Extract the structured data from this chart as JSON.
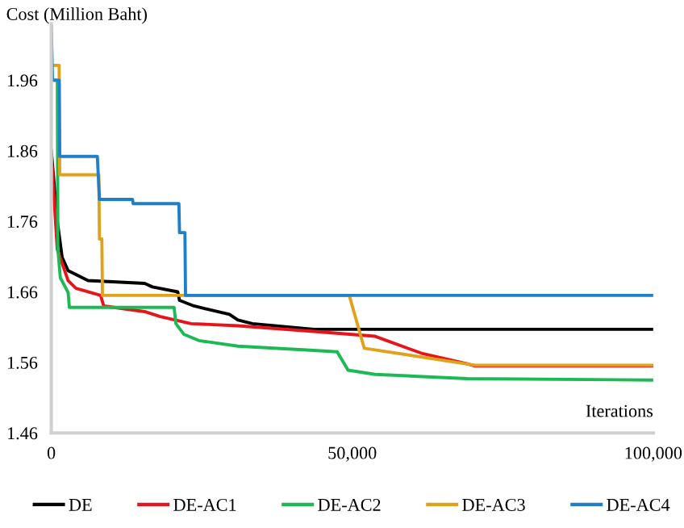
{
  "chart_data": {
    "type": "line",
    "xlabel": "Iterations",
    "ylabel": "Cost (Million Baht)",
    "xlim": [
      0,
      100000
    ],
    "ylim": [
      1.46,
      2.04
    ],
    "xticks": [
      0,
      {
        "value": 50000,
        "label": "50,000"
      },
      {
        "value": 100000,
        "label": "100,000"
      }
    ],
    "yticks": [
      1.46,
      1.56,
      1.66,
      1.76,
      1.86,
      1.96
    ],
    "grid": false,
    "legend": "bottom",
    "marker": "none",
    "line_style": "solid",
    "series": [
      {
        "name": "DE",
        "color": "#000000",
        "x": [
          0,
          1000,
          1800,
          2800,
          6100,
          15500,
          16800,
          21000,
          21300,
          23700,
          29600,
          31000,
          33400,
          43600,
          100000
        ],
        "values": [
          1.86,
          1.76,
          1.709,
          1.69,
          1.676,
          1.672,
          1.667,
          1.66,
          1.648,
          1.64,
          1.628,
          1.62,
          1.615,
          1.607,
          1.607
        ]
      },
      {
        "name": "DE-AC1",
        "color": "#e8141b",
        "x": [
          0,
          1000,
          2800,
          4100,
          8200,
          8700,
          15500,
          18100,
          23200,
          31000,
          43600,
          53800,
          61500,
          69100,
          70400,
          100000
        ],
        "values": [
          1.855,
          1.72,
          1.676,
          1.665,
          1.655,
          1.64,
          1.632,
          1.625,
          1.615,
          1.612,
          1.604,
          1.597,
          1.573,
          1.558,
          1.555,
          1.555
        ]
      },
      {
        "name": "DE-AC2",
        "color": "#1db954",
        "x": [
          0,
          1000,
          1100,
          1500,
          2800,
          3000,
          20400,
          20700,
          22000,
          24500,
          31000,
          43600,
          47500,
          49300,
          53800,
          69100,
          100000
        ],
        "values": [
          1.96,
          1.96,
          1.72,
          1.68,
          1.659,
          1.638,
          1.638,
          1.615,
          1.6,
          1.591,
          1.583,
          1.577,
          1.575,
          1.549,
          1.543,
          1.537,
          1.535
        ]
      },
      {
        "name": "DE-AC3",
        "color": "#e0a21a",
        "x": [
          0,
          1300,
          1400,
          7900,
          8000,
          8400,
          8500,
          49500,
          52000,
          70400,
          100000
        ],
        "values": [
          1.981,
          1.981,
          1.826,
          1.826,
          1.735,
          1.735,
          1.655,
          1.655,
          1.58,
          1.556,
          1.556
        ]
      },
      {
        "name": "DE-AC4",
        "color": "#1f7fc8",
        "x": [
          0,
          200,
          1300,
          1400,
          7650,
          8000,
          13500,
          13600,
          21200,
          21300,
          22200,
          22300,
          100000
        ],
        "values": [
          2.037,
          1.96,
          1.96,
          1.852,
          1.852,
          1.791,
          1.791,
          1.785,
          1.785,
          1.744,
          1.744,
          1.655,
          1.655
        ]
      }
    ]
  }
}
